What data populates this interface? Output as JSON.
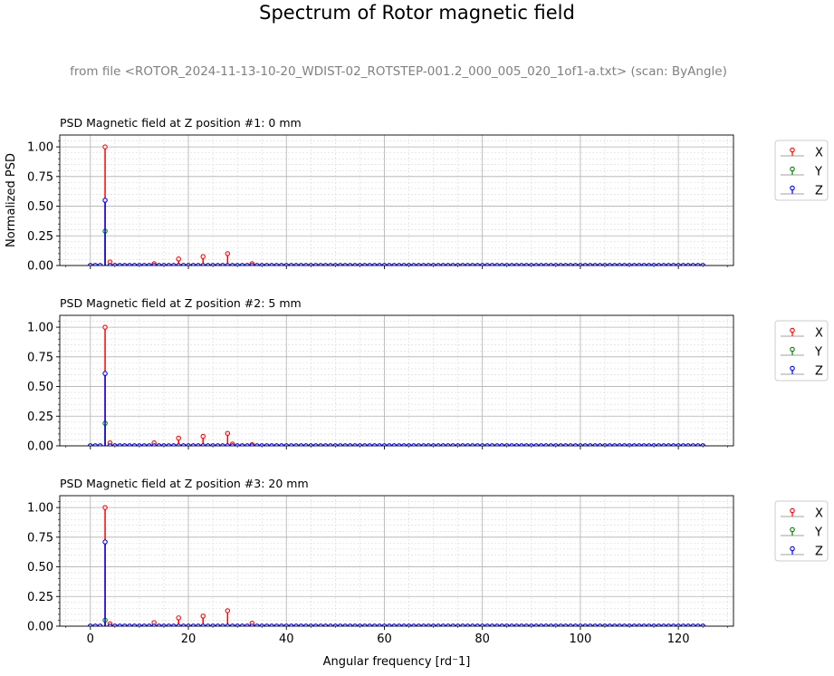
{
  "figure": {
    "title": "Spectrum of Rotor magnetic field",
    "subtitle": "from file <ROTOR_2024-11-13-10-20_WDIST-02_ROTSTEP-001.2_000_005_020_1of1-a.txt> (scan: ByAngle)"
  },
  "colors": {
    "X": "#ff0000",
    "Y": "#008000",
    "Z": "#0000ff",
    "grid": "#b0b0b0",
    "minor_grid": "#d8d8d8"
  },
  "chart_data": [
    {
      "type": "stem",
      "title": "PSD Magnetic field at Z position #1:   0 mm",
      "xlabel": "",
      "ylabel": "Normalized PSD",
      "xlim": [
        -6.25,
        131.25
      ],
      "ylim": [
        0,
        1.1
      ],
      "xticks": [
        0,
        20,
        40,
        60,
        80,
        100,
        120
      ],
      "yticks": [
        "0.00",
        "0.25",
        "0.50",
        "0.75",
        "1.00"
      ],
      "grid": true,
      "legend_position": "right",
      "legend": [
        "X",
        "Y",
        "Z"
      ],
      "x_step": 1,
      "x_max": 125,
      "series": [
        {
          "name": "X",
          "peaks": [
            [
              3,
              1.0
            ],
            [
              4,
              0.03
            ],
            [
              13,
              0.015
            ],
            [
              18,
              0.055
            ],
            [
              23,
              0.075
            ],
            [
              28,
              0.1
            ],
            [
              33,
              0.015
            ]
          ]
        },
        {
          "name": "Y",
          "peaks": [
            [
              3,
              0.29
            ]
          ]
        },
        {
          "name": "Z",
          "peaks": [
            [
              3,
              0.55
            ]
          ]
        }
      ]
    },
    {
      "type": "stem",
      "title": "PSD Magnetic field at Z position #2:   5 mm",
      "xlabel": "",
      "ylabel": "",
      "xlim": [
        -6.25,
        131.25
      ],
      "ylim": [
        0,
        1.1
      ],
      "xticks": [
        0,
        20,
        40,
        60,
        80,
        100,
        120
      ],
      "yticks": [
        "0.00",
        "0.25",
        "0.50",
        "0.75",
        "1.00"
      ],
      "grid": true,
      "legend_position": "right",
      "legend": [
        "X",
        "Y",
        "Z"
      ],
      "x_step": 1,
      "x_max": 125,
      "series": [
        {
          "name": "X",
          "peaks": [
            [
              3,
              1.0
            ],
            [
              4,
              0.025
            ],
            [
              13,
              0.025
            ],
            [
              18,
              0.065
            ],
            [
              23,
              0.08
            ],
            [
              28,
              0.105
            ],
            [
              29,
              0.015
            ],
            [
              33,
              0.01
            ]
          ]
        },
        {
          "name": "Y",
          "peaks": [
            [
              3,
              0.19
            ]
          ]
        },
        {
          "name": "Z",
          "peaks": [
            [
              3,
              0.61
            ]
          ]
        }
      ]
    },
    {
      "type": "stem",
      "title": "PSD Magnetic field at Z position #3:  20 mm",
      "xlabel": "Angular frequency [rd⁻1]",
      "ylabel": "",
      "xlim": [
        -6.25,
        131.25
      ],
      "ylim": [
        0,
        1.1
      ],
      "xticks": [
        0,
        20,
        40,
        60,
        80,
        100,
        120
      ],
      "yticks": [
        "0.00",
        "0.25",
        "0.50",
        "0.75",
        "1.00"
      ],
      "grid": true,
      "legend_position": "right",
      "legend": [
        "X",
        "Y",
        "Z"
      ],
      "x_step": 1,
      "x_max": 125,
      "series": [
        {
          "name": "X",
          "peaks": [
            [
              3,
              1.0
            ],
            [
              4,
              0.02
            ],
            [
              13,
              0.03
            ],
            [
              18,
              0.07
            ],
            [
              23,
              0.085
            ],
            [
              28,
              0.13
            ],
            [
              33,
              0.025
            ]
          ]
        },
        {
          "name": "Y",
          "peaks": [
            [
              3,
              0.05
            ]
          ]
        },
        {
          "name": "Z",
          "peaks": [
            [
              3,
              0.71
            ]
          ]
        }
      ]
    }
  ]
}
